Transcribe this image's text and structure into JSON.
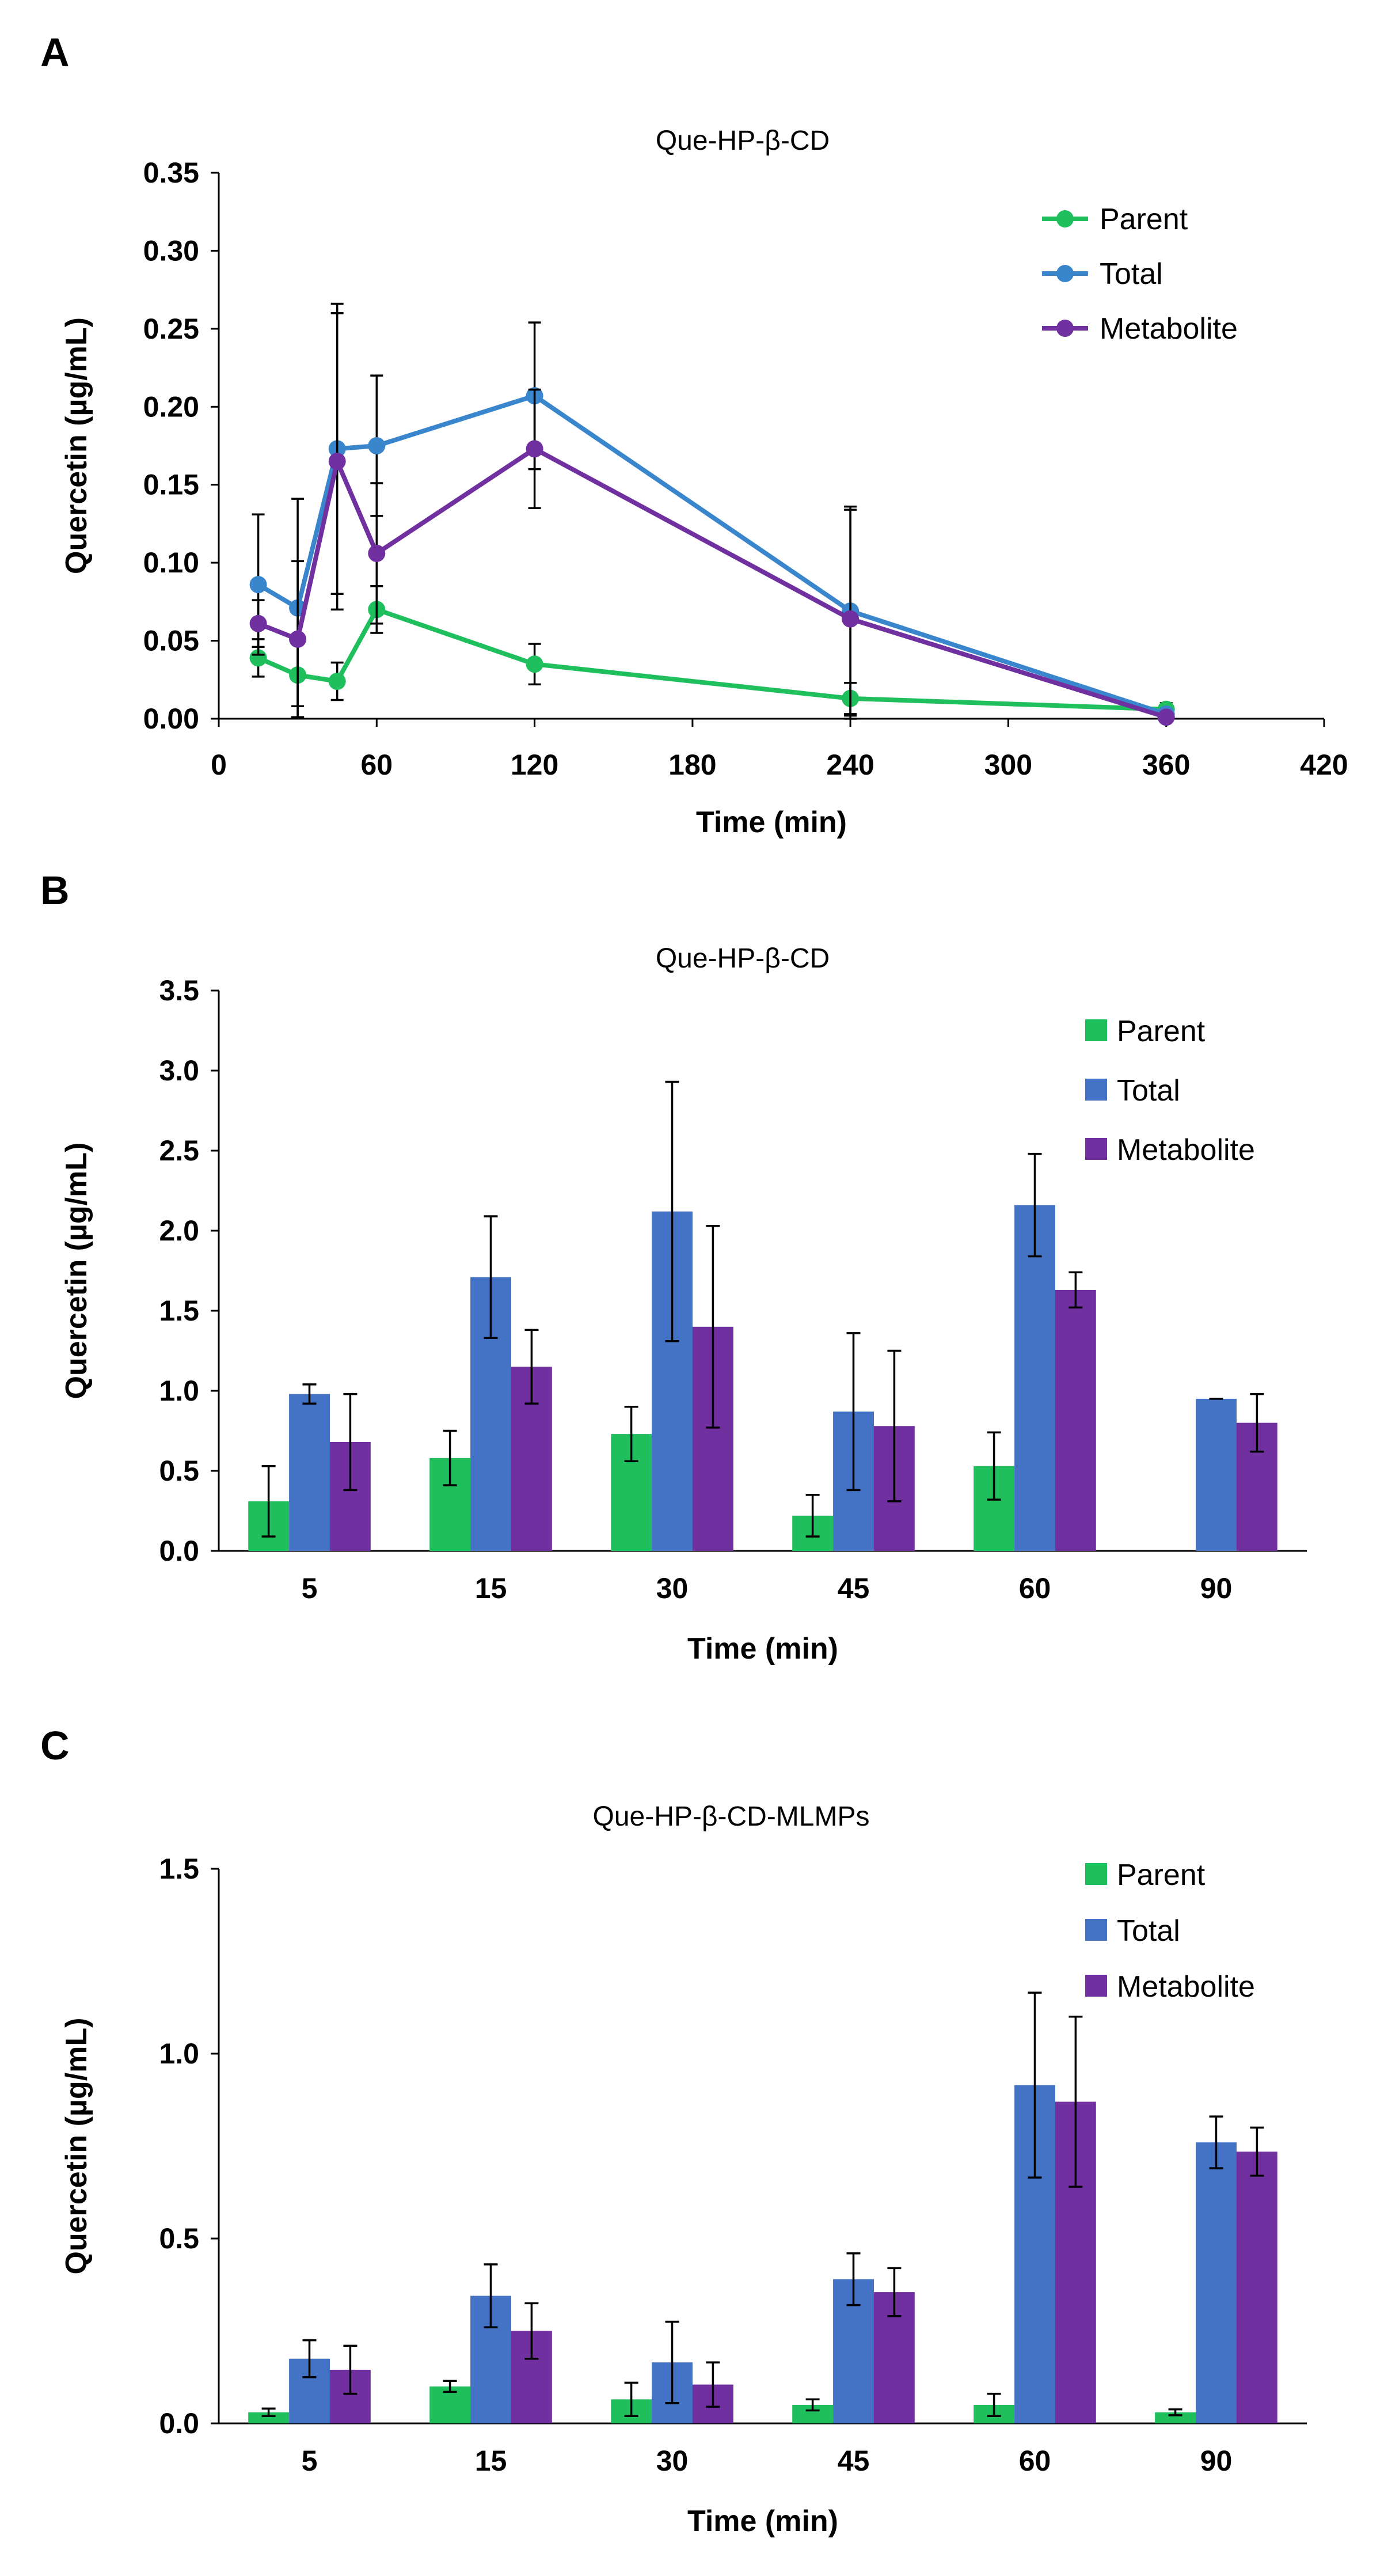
{
  "colors": {
    "parent_line": "#1fbf5e",
    "total_line": "#3a86cc",
    "metabolite_line": "#7030a0",
    "parent_bar": "#1fbf5e",
    "total_bar": "#4472c4",
    "metabolite_bar": "#7030a0"
  },
  "chart_data": [
    {
      "panel": "A",
      "type": "line",
      "title": "Que-HP-β-CD",
      "xlabel": "Time (min)",
      "ylabel": "Quercetin (µg/mL)",
      "xlim": [
        0,
        420
      ],
      "ylim": [
        0,
        0.35
      ],
      "x_ticks": [
        0,
        60,
        120,
        180,
        240,
        300,
        360,
        420
      ],
      "x_tick_labels": [
        "0",
        "60",
        "120",
        "180",
        "240",
        "300",
        "360",
        "420"
      ],
      "y_ticks": [
        0,
        0.05,
        0.1,
        0.15,
        0.2,
        0.25,
        0.3,
        0.35
      ],
      "y_tick_labels": [
        "0.00",
        "0.05",
        "0.10",
        "0.15",
        "0.20",
        "0.25",
        "0.30",
        "0.35"
      ],
      "legend_position": "top-right",
      "series": [
        {
          "name": "Parent",
          "color_key": "parent_line",
          "x": [
            15,
            30,
            45,
            60,
            120,
            240,
            360
          ],
          "y": [
            0.039,
            0.028,
            0.024,
            0.07,
            0.035,
            0.013,
            0.006
          ],
          "err": [
            0.012,
            0.02,
            0.012,
            0.015,
            0.013,
            0.01,
            0.004
          ]
        },
        {
          "name": "Total",
          "color_key": "total_line",
          "x": [
            15,
            30,
            45,
            60,
            120,
            240,
            360
          ],
          "y": [
            0.086,
            0.071,
            0.173,
            0.175,
            0.207,
            0.069,
            0.003
          ],
          "err": [
            0.045,
            0.07,
            0.093,
            0.045,
            0.047,
            0.067,
            0.003
          ]
        },
        {
          "name": "Metabolite",
          "color_key": "metabolite_line",
          "x": [
            15,
            30,
            45,
            60,
            120,
            240,
            360
          ],
          "y": [
            0.061,
            0.051,
            0.165,
            0.106,
            0.173,
            0.064,
            0.001
          ],
          "err": [
            0.015,
            0.05,
            0.095,
            0.045,
            0.038,
            0.07,
            0.002
          ]
        }
      ]
    },
    {
      "panel": "B",
      "type": "bar",
      "title": "Que-HP-β-CD",
      "xlabel": "Time (min)",
      "ylabel": "Quercetin (µg/mL)",
      "ylim": [
        0,
        3.5
      ],
      "categories": [
        "5",
        "15",
        "30",
        "45",
        "60",
        "90"
      ],
      "y_ticks": [
        0,
        0.5,
        1,
        1.5,
        2,
        2.5,
        3,
        3.5
      ],
      "y_tick_labels": [
        "0.0",
        "0.5",
        "1.0",
        "1.5",
        "2.0",
        "2.5",
        "3.0",
        "3.5"
      ],
      "legend_position": "top-right",
      "series": [
        {
          "name": "Parent",
          "color_key": "parent_bar",
          "values": [
            0.31,
            0.58,
            0.73,
            0.22,
            0.53,
            null
          ],
          "err": [
            0.22,
            0.17,
            0.17,
            0.13,
            0.21,
            null
          ]
        },
        {
          "name": "Total",
          "color_key": "total_bar",
          "values": [
            0.98,
            1.71,
            2.12,
            0.87,
            2.16,
            0.95
          ],
          "err": [
            0.06,
            0.38,
            0.81,
            0.49,
            0.32,
            0.0
          ]
        },
        {
          "name": "Metabolite",
          "color_key": "metabolite_bar",
          "values": [
            0.68,
            1.15,
            1.4,
            0.78,
            1.63,
            0.8
          ],
          "err": [
            0.3,
            0.23,
            0.63,
            0.47,
            0.11,
            0.18
          ]
        }
      ]
    },
    {
      "panel": "C",
      "type": "bar",
      "title": "Que-HP-β-CD-MLMPs",
      "xlabel": "Time (min)",
      "ylabel": "Quercetin (µg/mL)",
      "ylim": [
        0,
        1.5
      ],
      "categories": [
        "5",
        "15",
        "30",
        "45",
        "60",
        "90"
      ],
      "y_ticks": [
        0,
        0.5,
        1,
        1.5
      ],
      "y_tick_labels": [
        "0.0",
        "0.5",
        "1.0",
        "1.5"
      ],
      "legend_position": "top-right",
      "series": [
        {
          "name": "Parent",
          "color_key": "parent_bar",
          "values": [
            0.03,
            0.1,
            0.065,
            0.05,
            0.05,
            0.03
          ],
          "err": [
            0.01,
            0.015,
            0.045,
            0.015,
            0.03,
            0.008
          ]
        },
        {
          "name": "Total",
          "color_key": "total_bar",
          "values": [
            0.175,
            0.345,
            0.165,
            0.39,
            0.915,
            0.76
          ],
          "err": [
            0.05,
            0.085,
            0.11,
            0.07,
            0.25,
            0.07
          ]
        },
        {
          "name": "Metabolite",
          "color_key": "metabolite_bar",
          "values": [
            0.145,
            0.25,
            0.105,
            0.355,
            0.87,
            0.735
          ],
          "err": [
            0.065,
            0.075,
            0.06,
            0.065,
            0.23,
            0.065
          ]
        }
      ]
    }
  ]
}
